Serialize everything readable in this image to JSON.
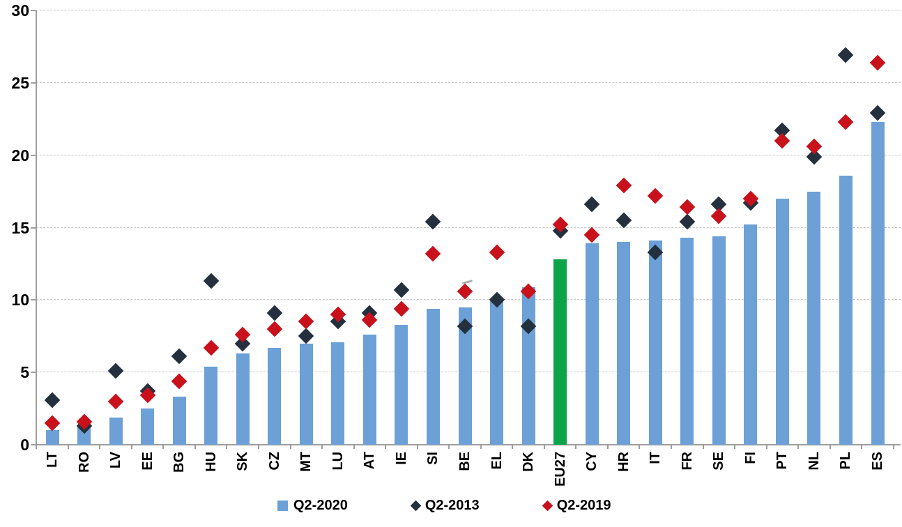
{
  "chart_data": {
    "type": "bar",
    "title": "",
    "xlabel": "",
    "ylabel": "",
    "categories": [
      "LT",
      "RO",
      "LV",
      "EE",
      "BG",
      "HU",
      "SK",
      "CZ",
      "MT",
      "LU",
      "AT",
      "IE",
      "SI",
      "BE",
      "EL",
      "DK",
      "EU27",
      "CY",
      "HR",
      "IT",
      "FR",
      "SE",
      "FI",
      "PT",
      "NL",
      "PL",
      "ES"
    ],
    "highlighted_category": "EU27",
    "series": [
      {
        "name": "Q2-2020",
        "type": "bar",
        "color": "#6CA0D6",
        "highlight_color": "#0CA349",
        "values": [
          1.0,
          1.4,
          1.9,
          2.5,
          3.3,
          5.4,
          6.3,
          6.7,
          7.0,
          7.1,
          7.6,
          8.3,
          9.4,
          9.5,
          9.9,
          10.9,
          12.8,
          13.9,
          14.0,
          14.1,
          14.3,
          14.4,
          15.2,
          17.0,
          17.5,
          18.6,
          22.3
        ]
      },
      {
        "name": "Q2-2013",
        "type": "scatter",
        "marker": "diamond",
        "color": "#25303E",
        "values": [
          3.1,
          1.3,
          5.1,
          3.7,
          6.1,
          11.3,
          7.0,
          9.1,
          7.5,
          8.5,
          9.1,
          10.7,
          15.4,
          8.2,
          10.0,
          8.2,
          14.8,
          16.6,
          15.5,
          13.3,
          15.4,
          16.6,
          16.7,
          21.7,
          19.9,
          26.9,
          22.9
        ]
      },
      {
        "name": "Q2-2019",
        "type": "scatter",
        "marker": "diamond",
        "color": "#C9111C",
        "values": [
          1.5,
          1.6,
          3.0,
          3.4,
          4.4,
          6.7,
          7.6,
          8.0,
          8.5,
          9.0,
          8.6,
          9.4,
          13.2,
          10.6,
          13.3,
          10.6,
          15.2,
          14.5,
          17.9,
          17.2,
          16.4,
          15.8,
          17.0,
          21.0,
          20.6,
          22.3,
          26.4
        ]
      }
    ],
    "ylim": [
      0,
      30
    ],
    "yticks": [
      0,
      5,
      10,
      15,
      20,
      25,
      30
    ],
    "grid": "horizontal-dashed",
    "legend_position": "bottom"
  },
  "legend": {
    "items": [
      {
        "label": "Q2-2020",
        "swatch": "square",
        "color": "#6CA0D6"
      },
      {
        "label": "Q2-2013",
        "swatch": "diamond",
        "color": "#25303E"
      },
      {
        "label": "Q2-2019",
        "swatch": "diamond",
        "color": "#C9111C"
      }
    ]
  },
  "colors": {
    "bar_blue": "#6CA0D6",
    "bar_green": "#0CA349",
    "diamond_dark": "#25303E",
    "diamond_red": "#C9111C",
    "gridline": "#C3C3C3",
    "axis": "#9E9E9E",
    "text": "#000000",
    "background": "#FFFFFF"
  }
}
